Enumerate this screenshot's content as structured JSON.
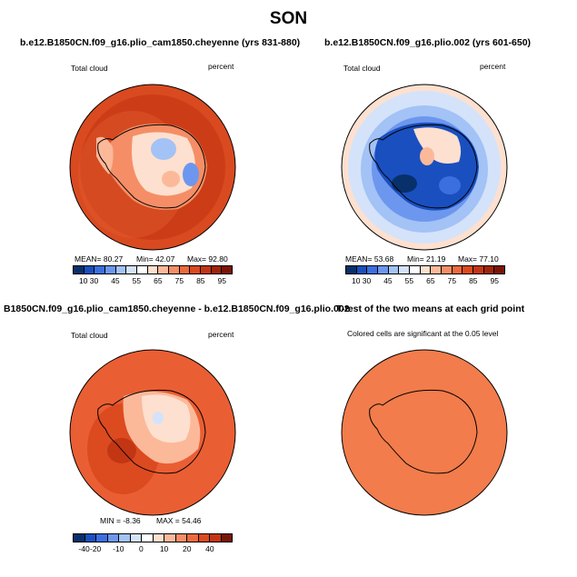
{
  "figure": {
    "title": "SON"
  },
  "panels": [
    {
      "title": "b.e12.B1850CN.f09_g16.plio_cam1850.cheyenne (yrs 831-880)",
      "left_label": "Total cloud",
      "right_label": "percent",
      "stats": {
        "mean_label": "MEAN=",
        "mean": "80.27",
        "min_label": "Min=",
        "min": "42.07",
        "max_label": "Max=",
        "max": "92.80"
      },
      "colorbar_ticks": [
        "10",
        "30",
        "45",
        "55",
        "65",
        "75",
        "85",
        "95"
      ]
    },
    {
      "title": "b.e12.B1850CN.f09_g16.plio.002 (yrs 601-650)",
      "left_label": "Total cloud",
      "right_label": "percent",
      "stats": {
        "mean_label": "MEAN=",
        "mean": "53.68",
        "min_label": "Min=",
        "min": "21.19",
        "max_label": "Max=",
        "max": "77.10"
      },
      "colorbar_ticks": [
        "10",
        "30",
        "45",
        "55",
        "65",
        "75",
        "85",
        "95"
      ]
    },
    {
      "title": "B1850CN.f09_g16.plio_cam1850.cheyenne - b.e12.B1850CN.f09_g16.plio.002",
      "left_label": "Total cloud",
      "right_label": "percent",
      "stats": {
        "min_label": "MIN =",
        "min": "-8.36",
        "max_label": "MAX =",
        "max": "54.46"
      },
      "colorbar_ticks": [
        "-40",
        "-20",
        "-10",
        "0",
        "10",
        "20",
        "40"
      ]
    },
    {
      "title": "T-test of the two means at each grid point",
      "note": "Colored cells are significant at the 0.05 level"
    }
  ],
  "colors": {
    "colorbar": [
      "#08306b",
      "#1a4fbf",
      "#3b6fe0",
      "#6d97ee",
      "#a3c2f5",
      "#d4e3fa",
      "#ffffff",
      "#fde0cf",
      "#fbb99a",
      "#f58e66",
      "#ec6a3e",
      "#dc4a20",
      "#c33613",
      "#a0240b",
      "#7a1407"
    ],
    "diff_colorbar": [
      "#08306b",
      "#1a4fbf",
      "#3b6fe0",
      "#6d97ee",
      "#a3c2f5",
      "#d4e3fa",
      "#ffffff",
      "#fde0cf",
      "#fbb99a",
      "#f58e66",
      "#ec6a3e",
      "#dc4a20",
      "#c33613",
      "#7a1407"
    ],
    "panel1_base": "#d94a20",
    "panel2_base": "#a9c7f2",
    "panel3_base": "#ea5e33",
    "panel4_base": "#f27c4b"
  }
}
